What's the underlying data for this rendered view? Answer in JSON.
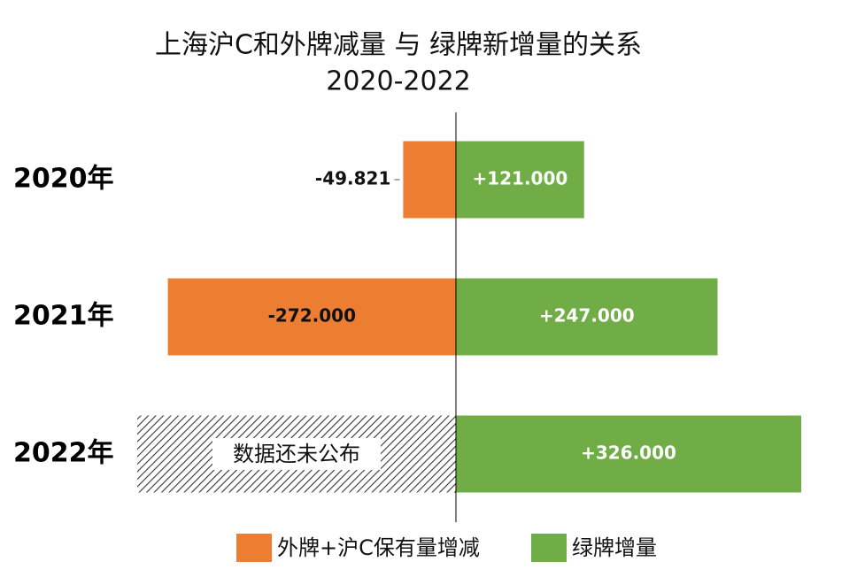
{
  "chart_data": {
    "type": "diverging-bar",
    "title": "上海沪C和外牌减量 与 绿牌新增量的关系",
    "subtitle": "2020-2022",
    "categories": [
      "2020年",
      "2021年",
      "2022年"
    ],
    "series": [
      {
        "name": "外牌+沪C保有量增减",
        "color": "#ED7D31",
        "values": [
          -49.821,
          -272,
          null
        ],
        "value_labels": [
          "-49.821",
          "-272.000",
          null
        ]
      },
      {
        "name": "绿牌增量",
        "color": "#70AD47",
        "values": [
          121,
          247,
          326
        ],
        "value_labels": [
          "+121.000",
          "+247.000",
          "+326.000"
        ]
      }
    ],
    "annotation": "数据还未公布"
  }
}
